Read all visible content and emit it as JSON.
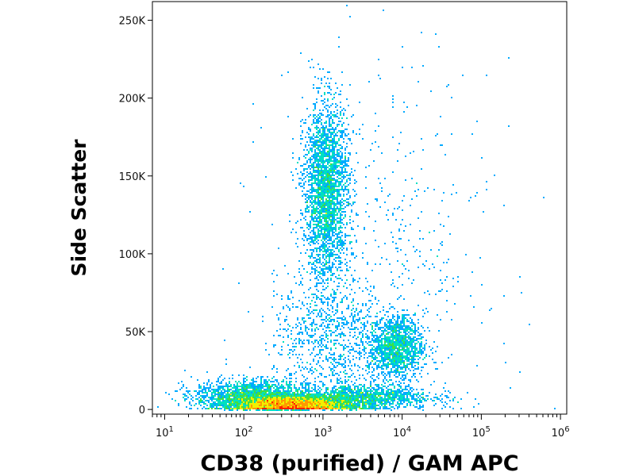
{
  "chart_data": {
    "type": "scatter",
    "title": "",
    "xlabel": "CD38 (purified) / GAM APC",
    "ylabel": "Side Scatter",
    "x_scale": "log",
    "xlim": [
      7,
      1200000
    ],
    "ylim": [
      -3000,
      262000
    ],
    "x_ticks": [
      {
        "value": 10,
        "base": "10",
        "exp": "1"
      },
      {
        "value": 100,
        "base": "10",
        "exp": "2"
      },
      {
        "value": 1000,
        "base": "10",
        "exp": "3"
      },
      {
        "value": 10000,
        "base": "10",
        "exp": "4"
      },
      {
        "value": 100000,
        "base": "10",
        "exp": "5"
      },
      {
        "value": 1000000,
        "base": "10",
        "exp": "6"
      }
    ],
    "y_ticks": [
      {
        "value": 0,
        "label": "0"
      },
      {
        "value": 50000,
        "label": "50K"
      },
      {
        "value": 100000,
        "label": "100K"
      },
      {
        "value": 150000,
        "label": "150K"
      },
      {
        "value": 200000,
        "label": "200K"
      },
      {
        "value": 250000,
        "label": "250K"
      }
    ],
    "grid": false,
    "legend": "none",
    "color_scale": [
      "#1a1aff",
      "#00aaff",
      "#00e0c0",
      "#40e040",
      "#f0f000",
      "#ff9900",
      "#ff2000"
    ],
    "populations": [
      {
        "name_hint": "lymphocyte cluster",
        "cx": 400,
        "cy": 3000,
        "sx_decades": 0.38,
        "sy": 3000,
        "weight": 0.38
      },
      {
        "name_hint": "low CD38 cells",
        "cx": 120,
        "cy": 9000,
        "sx_decades": 0.35,
        "sy": 5000,
        "weight": 0.12
      },
      {
        "name_hint": "mid band",
        "cx": 3000,
        "cy": 8000,
        "sx_decades": 0.45,
        "sy": 4000,
        "weight": 0.1
      },
      {
        "name_hint": "granulocytes",
        "cx": 1100,
        "cy": 140000,
        "sx_decades": 0.14,
        "sy": 28000,
        "weight": 0.2
      },
      {
        "name_hint": "monocytes",
        "cx": 8500,
        "cy": 40000,
        "sx_decades": 0.17,
        "sy": 10000,
        "weight": 0.1
      },
      {
        "name_hint": "bridge",
        "cx": 1200,
        "cy": 45000,
        "sx_decades": 0.35,
        "sy": 20000,
        "weight": 0.06
      },
      {
        "name_hint": "scatter",
        "cx": 5000,
        "cy": 100000,
        "sx_decades": 0.7,
        "sy": 60000,
        "weight": 0.04
      }
    ]
  }
}
